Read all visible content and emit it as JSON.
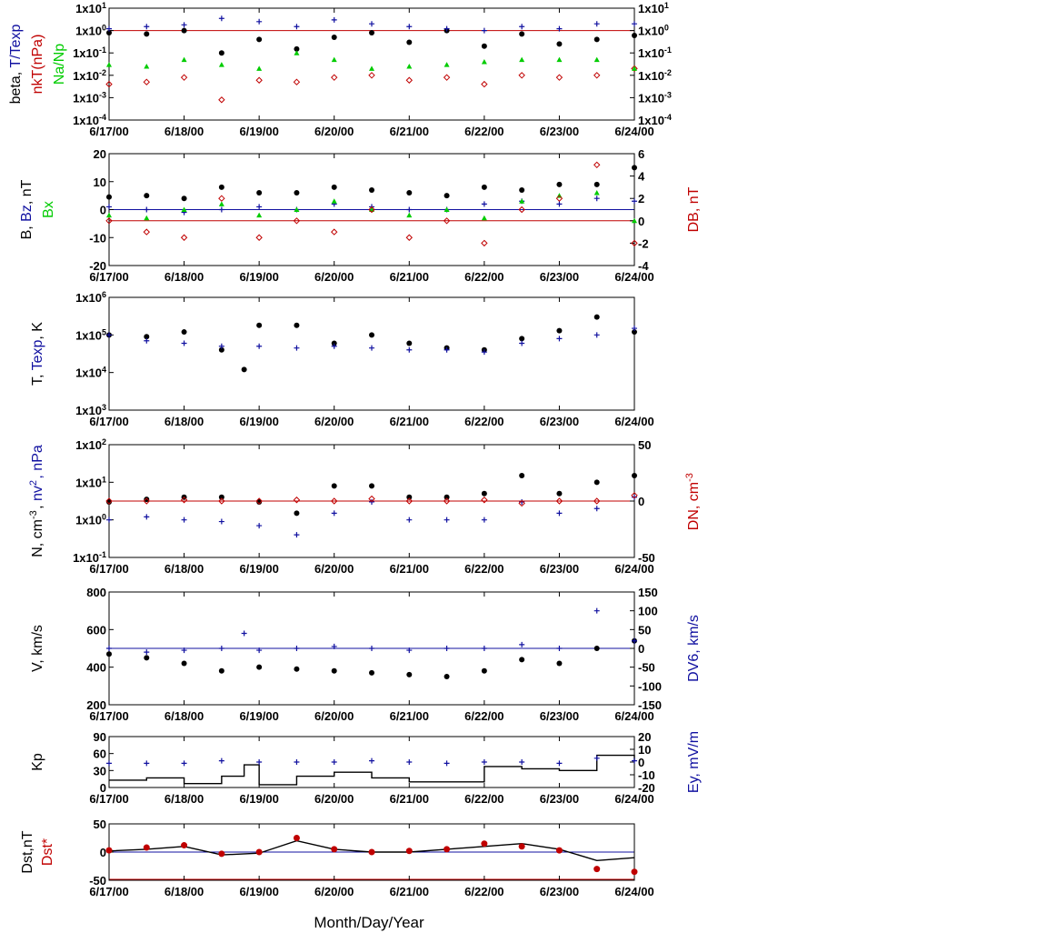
{
  "figure": {
    "xlabel": "Month/Day/Year",
    "x_ticks": [
      "6/17/00",
      "6/18/00",
      "6/19/00",
      "6/20/00",
      "6/21/00",
      "6/22/00",
      "6/23/00",
      "6/24/00"
    ]
  },
  "colors": {
    "black": "#000000",
    "blue": "#1010a0",
    "red": "#c00000",
    "green": "#00cc00",
    "axis": "#000000"
  },
  "chart_data": [
    {
      "type": "scatter",
      "panel": "plasma-beta",
      "ylabel_parts": [
        {
          "text": "beta, ",
          "color": "black",
          "line": 0
        },
        {
          "text": "T/Texp",
          "color": "blue",
          "line": 0
        },
        {
          "text": "nkT(nPa)",
          "color": "red",
          "line": 1
        },
        {
          "text": "Na/Np",
          "color": "green",
          "line": 2
        }
      ],
      "y_scale": "log",
      "ylim": [
        0.0001,
        10
      ],
      "y_ticks_left": [
        "1x10-4",
        "1x10-3",
        "1x10-2",
        "1x10-1",
        "1x100",
        "1x101"
      ],
      "y_ticks_right": [
        "1x10-4",
        "1x10-3",
        "1x10-2",
        "1x10-1",
        "1x100",
        "1x101"
      ],
      "reference_line": 1,
      "series": [
        {
          "label": "beta",
          "marker": "dot",
          "color": "black",
          "x": [
            0.0,
            0.5,
            1.0,
            1.5,
            2.0,
            2.5,
            3.0,
            3.5,
            4.0,
            4.5,
            5.0,
            5.5,
            6.0,
            6.5,
            7.0
          ],
          "y": [
            0.8,
            0.7,
            1.0,
            0.1,
            0.4,
            0.15,
            0.5,
            0.8,
            0.3,
            1.0,
            0.2,
            0.7,
            0.25,
            0.4,
            0.6
          ]
        },
        {
          "label": "T/Texp",
          "marker": "plus",
          "color": "blue",
          "x": [
            0.0,
            0.5,
            1.0,
            1.5,
            2.0,
            2.5,
            3.0,
            3.5,
            4.0,
            4.5,
            5.0,
            5.5,
            6.0,
            6.5,
            7.0
          ],
          "y": [
            1.2,
            1.5,
            1.8,
            3.5,
            2.5,
            1.5,
            3.0,
            2.0,
            1.5,
            1.2,
            1.0,
            1.5,
            1.2,
            2.0,
            2.0
          ]
        },
        {
          "label": "nkT(nPa)",
          "marker": "diamond",
          "color": "red",
          "x": [
            0.0,
            0.5,
            1.0,
            1.5,
            2.0,
            2.5,
            3.0,
            3.5,
            4.0,
            4.5,
            5.0,
            5.5,
            6.0,
            6.5,
            7.0
          ],
          "y": [
            0.004,
            0.005,
            0.008,
            0.0008,
            0.006,
            0.005,
            0.008,
            0.01,
            0.006,
            0.008,
            0.004,
            0.01,
            0.008,
            0.01,
            0.02
          ]
        },
        {
          "label": "Na/Np",
          "marker": "triangle",
          "color": "green",
          "x": [
            0.0,
            0.5,
            1.0,
            1.5,
            2.0,
            2.5,
            3.0,
            3.5,
            4.0,
            4.5,
            5.0,
            5.5,
            6.0,
            6.5,
            7.0
          ],
          "y": [
            0.03,
            0.025,
            0.05,
            0.03,
            0.02,
            0.1,
            0.05,
            0.02,
            0.025,
            0.03,
            0.04,
            0.05,
            0.05,
            0.05,
            0.02
          ]
        }
      ]
    },
    {
      "type": "scatter",
      "panel": "magnetic-field",
      "ylabel_parts": [
        {
          "text": "B, ",
          "color": "black",
          "line": 0
        },
        {
          "text": "Bz",
          "color": "blue",
          "line": 0
        },
        {
          "text": ", nT",
          "color": "black",
          "line": 0
        },
        {
          "text": "Bx",
          "color": "green",
          "line": 1
        }
      ],
      "ylabel_right_parts": [
        {
          "text": "DB, nT",
          "color": "red",
          "line": 0
        }
      ],
      "ylim": [
        -20,
        20
      ],
      "y_ticks_left": [
        "-20",
        "-10",
        "0",
        "10",
        "20"
      ],
      "ylim_right": [
        -4,
        6
      ],
      "y_ticks_right": [
        "-4",
        "-2",
        "0",
        "2",
        "4",
        "6"
      ],
      "reference_line": 0,
      "reference_line_right": 0,
      "series": [
        {
          "label": "B",
          "marker": "dot",
          "color": "black",
          "x": [
            0.0,
            0.5,
            1.0,
            1.5,
            2.0,
            2.5,
            3.0,
            3.5,
            4.0,
            4.5,
            5.0,
            5.5,
            6.0,
            6.5,
            7.0
          ],
          "y": [
            4.5,
            5.0,
            4.0,
            8.0,
            6.0,
            6.0,
            8.0,
            7.0,
            6.0,
            5.0,
            8.0,
            7.0,
            9.0,
            9.0,
            15.0
          ]
        },
        {
          "label": "Bz",
          "marker": "plus",
          "color": "blue",
          "x": [
            0.0,
            0.5,
            1.0,
            1.5,
            2.0,
            2.5,
            3.0,
            3.5,
            4.0,
            4.5,
            5.0,
            5.5,
            6.0,
            6.5,
            7.0
          ],
          "y": [
            1.0,
            0.0,
            -1.0,
            0.0,
            1.0,
            0.0,
            2.0,
            1.0,
            0.0,
            0.0,
            2.0,
            3.0,
            2.0,
            4.0,
            3.0
          ]
        },
        {
          "label": "Bx",
          "marker": "triangle",
          "color": "green",
          "x": [
            0.0,
            0.5,
            1.0,
            1.5,
            2.0,
            2.5,
            3.0,
            3.5,
            4.0,
            4.5,
            5.0,
            5.5,
            6.0,
            6.5,
            7.0
          ],
          "y": [
            -2.0,
            -3.0,
            0.0,
            2.0,
            -2.0,
            0.0,
            3.0,
            0.0,
            -2.0,
            0.0,
            -3.0,
            3.0,
            5.0,
            6.0,
            -4.0
          ]
        },
        {
          "label": "DB",
          "axis": "right",
          "marker": "diamond",
          "color": "red",
          "x": [
            0.0,
            0.5,
            1.0,
            1.5,
            2.0,
            2.5,
            3.0,
            3.5,
            4.0,
            4.5,
            5.0,
            5.5,
            6.0,
            6.5,
            7.0
          ],
          "y": [
            0.0,
            -1.0,
            -1.5,
            2.0,
            -1.5,
            0.0,
            -1.0,
            1.0,
            -1.5,
            0.0,
            -2.0,
            1.0,
            2.0,
            5.0,
            -2.0
          ]
        }
      ]
    },
    {
      "type": "scatter",
      "panel": "temperature",
      "ylabel_parts": [
        {
          "text": "T, ",
          "color": "black",
          "line": 0
        },
        {
          "text": "Texp",
          "color": "blue",
          "line": 0
        },
        {
          "text": ", K",
          "color": "black",
          "line": 0
        }
      ],
      "y_scale": "log",
      "ylim": [
        1000,
        1000000
      ],
      "y_ticks_left": [
        "1x103",
        "1x104",
        "1x105",
        "1x106"
      ],
      "series": [
        {
          "label": "T",
          "marker": "dot",
          "color": "black",
          "x": [
            0.0,
            0.5,
            1.0,
            1.5,
            1.8,
            2.0,
            2.5,
            3.0,
            3.5,
            4.0,
            4.5,
            5.0,
            5.5,
            6.0,
            6.5,
            7.0
          ],
          "y": [
            100000,
            90000,
            120000,
            40000,
            12000,
            180000,
            180000,
            60000,
            100000,
            60000,
            45000,
            40000,
            80000,
            130000,
            300000,
            120000
          ]
        },
        {
          "label": "Texp",
          "marker": "plus",
          "color": "blue",
          "x": [
            0.0,
            0.5,
            1.0,
            1.5,
            2.0,
            2.5,
            3.0,
            3.5,
            4.0,
            4.5,
            5.0,
            5.5,
            6.0,
            6.5,
            7.0
          ],
          "y": [
            100000,
            70000,
            60000,
            50000,
            50000,
            45000,
            50000,
            45000,
            40000,
            40000,
            35000,
            60000,
            80000,
            100000,
            150000
          ]
        }
      ]
    },
    {
      "type": "scatter",
      "panel": "density",
      "ylabel_parts": [
        {
          "text": "N, cm",
          "color": "black",
          "line": 0,
          "sup": "-3"
        },
        {
          "text": ", ",
          "color": "black",
          "line": 0
        },
        {
          "text": "nv",
          "color": "blue",
          "line": 0,
          "sup": "2"
        },
        {
          "text": ", nPa",
          "color": "blue",
          "line": 0
        }
      ],
      "ylabel_right_parts": [
        {
          "text": "DN, cm",
          "color": "red",
          "line": 0,
          "sup": "-3"
        }
      ],
      "y_scale": "log",
      "ylim": [
        0.1,
        100
      ],
      "y_ticks_left": [
        "1x10-1",
        "1x100",
        "1x101",
        "1x102"
      ],
      "ylim_right": [
        -50,
        50
      ],
      "y_ticks_right": [
        "-50",
        "0",
        "50"
      ],
      "reference_line_right": 0,
      "series": [
        {
          "label": "N",
          "marker": "dot",
          "color": "black",
          "x": [
            0.0,
            0.5,
            1.0,
            1.5,
            2.0,
            2.5,
            3.0,
            3.5,
            4.0,
            4.5,
            5.0,
            5.5,
            6.0,
            6.5,
            7.0
          ],
          "y": [
            3.0,
            3.5,
            4.0,
            4.0,
            3.0,
            1.5,
            8.0,
            8.0,
            4.0,
            4.0,
            5.0,
            15.0,
            5.0,
            10.0,
            15.0
          ]
        },
        {
          "label": "nv2",
          "marker": "plus",
          "color": "blue",
          "x": [
            0.0,
            0.5,
            1.0,
            1.5,
            2.0,
            2.5,
            3.0,
            3.5,
            4.0,
            4.5,
            5.0,
            5.5,
            6.0,
            6.5,
            7.0
          ],
          "y": [
            1.0,
            1.2,
            1.0,
            0.9,
            0.7,
            0.4,
            1.5,
            3.0,
            1.0,
            1.0,
            1.0,
            3.0,
            1.5,
            2.0,
            4.0
          ]
        },
        {
          "label": "DN",
          "axis": "right",
          "marker": "diamond",
          "color": "red",
          "x": [
            0.0,
            0.5,
            1.0,
            1.5,
            2.0,
            2.5,
            3.0,
            3.5,
            4.0,
            4.5,
            5.0,
            5.5,
            6.0,
            6.5,
            7.0
          ],
          "y": [
            0.0,
            0.0,
            1.0,
            0.0,
            0.0,
            1.0,
            0.0,
            2.0,
            0.0,
            0.0,
            1.0,
            -2.0,
            0.0,
            0.0,
            5.0
          ]
        }
      ]
    },
    {
      "type": "scatter",
      "panel": "velocity",
      "ylabel_parts": [
        {
          "text": "V, km/s",
          "color": "black",
          "line": 0
        }
      ],
      "ylabel_right_parts": [
        {
          "text": "DV6, km/s",
          "color": "blue",
          "line": 0
        }
      ],
      "ylim": [
        200,
        800
      ],
      "y_ticks_left": [
        "200",
        "400",
        "600",
        "800"
      ],
      "ylim_right": [
        -150,
        150
      ],
      "y_ticks_right": [
        "-150",
        "-100",
        "-50",
        "0",
        "50",
        "100",
        "150"
      ],
      "reference_line_right": 0,
      "series": [
        {
          "label": "V",
          "marker": "dot",
          "color": "black",
          "x": [
            0.0,
            0.5,
            1.0,
            1.5,
            2.0,
            2.5,
            3.0,
            3.5,
            4.0,
            4.5,
            5.0,
            5.5,
            6.0,
            6.5,
            7.0
          ],
          "y": [
            470,
            450,
            420,
            380,
            400,
            390,
            380,
            370,
            360,
            350,
            380,
            440,
            420,
            500,
            540
          ]
        },
        {
          "label": "DV6",
          "axis": "right",
          "marker": "plus",
          "color": "blue",
          "x": [
            0.0,
            0.5,
            1.0,
            1.5,
            1.8,
            2.0,
            2.5,
            3.0,
            3.5,
            4.0,
            4.5,
            5.0,
            5.5,
            6.0,
            6.5,
            7.0
          ],
          "y": [
            0,
            -10,
            -5,
            0,
            40,
            -5,
            0,
            5,
            0,
            -5,
            0,
            0,
            10,
            0,
            100,
            20
          ]
        }
      ]
    },
    {
      "type": "line",
      "panel": "kp-index",
      "ylabel_parts": [
        {
          "text": "Kp",
          "color": "black",
          "line": 0
        }
      ],
      "ylabel_right_parts": [
        {
          "text": "Ey, mV/m",
          "color": "blue",
          "line": 0
        }
      ],
      "ylim": [
        0,
        90
      ],
      "y_ticks_left": [
        "0",
        "30",
        "60",
        "90"
      ],
      "ylim_right": [
        -20,
        20
      ],
      "y_ticks_right": [
        "-20",
        "-10",
        "0",
        "10",
        "20"
      ],
      "series": [
        {
          "label": "Kp",
          "style": "step",
          "color": "black",
          "x": [
            0.0,
            0.5,
            1.0,
            1.5,
            1.8,
            2.0,
            2.5,
            3.0,
            3.5,
            4.0,
            4.5,
            5.0,
            5.5,
            6.0,
            6.5,
            7.0
          ],
          "y": [
            13,
            17,
            7,
            20,
            40,
            5,
            20,
            27,
            17,
            10,
            10,
            37,
            33,
            30,
            57,
            47
          ]
        },
        {
          "label": "Ey",
          "axis": "right",
          "marker": "plus",
          "color": "blue",
          "x": [
            0.0,
            0.5,
            1.0,
            1.5,
            2.0,
            2.5,
            3.0,
            3.5,
            4.0,
            4.5,
            5.0,
            5.5,
            6.0,
            6.5,
            7.0
          ],
          "y": [
            -1,
            -1,
            -1,
            1,
            0,
            0,
            0,
            1,
            0,
            -1,
            0,
            0,
            -1,
            3,
            1
          ]
        }
      ]
    },
    {
      "type": "scatter",
      "panel": "dst-index",
      "ylabel_parts": [
        {
          "text": "Dst,nT",
          "color": "black",
          "line": 0
        },
        {
          "text": "Dst*",
          "color": "red",
          "line": 1
        }
      ],
      "ylim": [
        -50,
        50
      ],
      "y_ticks_left": [
        "-50",
        "0",
        "50"
      ],
      "reference_line": 0,
      "series": [
        {
          "label": "Dst",
          "style": "line",
          "color": "black",
          "x": [
            0.0,
            0.5,
            1.0,
            1.5,
            2.0,
            2.5,
            3.0,
            3.5,
            4.0,
            4.5,
            5.0,
            5.5,
            6.0,
            6.5,
            7.0
          ],
          "y": [
            2,
            5,
            10,
            -5,
            -2,
            20,
            5,
            0,
            0,
            5,
            10,
            15,
            5,
            -15,
            -10
          ]
        },
        {
          "label": "Dst*",
          "marker": "bigdot",
          "color": "red",
          "x": [
            0.0,
            0.5,
            1.0,
            1.5,
            2.0,
            2.5,
            3.0,
            3.5,
            4.0,
            4.5,
            5.0,
            5.5,
            6.0,
            6.5,
            7.0
          ],
          "y": [
            3,
            8,
            12,
            -3,
            0,
            25,
            5,
            0,
            2,
            5,
            15,
            10,
            3,
            -30,
            -35
          ]
        }
      ]
    }
  ]
}
